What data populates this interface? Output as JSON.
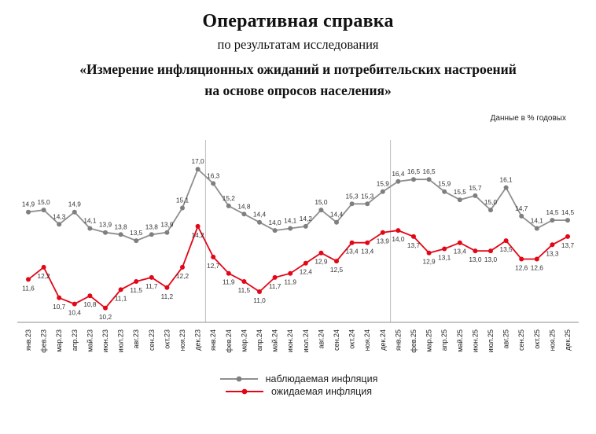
{
  "header": {
    "title": "Оперативная справка",
    "subtitle": "по результатам исследования",
    "study_line1": "«Измерение инфляционных ожиданий и потребительских настроений",
    "study_line2": "на основе опросов населения»",
    "units_note": "Данные в % годовых"
  },
  "chart_data": {
    "type": "line",
    "categories": [
      "янв.23",
      "фев.23",
      "мар.23",
      "апр.23",
      "май.23",
      "июн.23",
      "июл.23",
      "авг.23",
      "сен.23",
      "окт.23",
      "ноя.23",
      "дек.23",
      "янв.24",
      "фев.24",
      "мар.24",
      "апр.24",
      "май.24",
      "июн.24",
      "июл.24",
      "авг.24",
      "сен.24",
      "окт.24",
      "ноя.24",
      "дек.24",
      "янв.25",
      "фев.25",
      "мар.25",
      "апр.25",
      "май.25",
      "июн.25",
      "июл.25",
      "авг.25",
      "сен.25",
      "окт.25",
      "ноя.25",
      "дек.25"
    ],
    "series": [
      {
        "name": "наблюдаемая инфляция",
        "color": "#8f8f8f",
        "marker_color": "#7f7f7f",
        "values": [
          14.9,
          15.0,
          14.3,
          14.9,
          14.1,
          13.9,
          13.8,
          13.5,
          13.8,
          13.9,
          15.1,
          17.0,
          16.3,
          15.2,
          14.8,
          14.4,
          14.0,
          14.1,
          14.2,
          15.0,
          14.4,
          15.3,
          15.3,
          15.9,
          16.4,
          16.5,
          16.5,
          15.9,
          15.5,
          15.7,
          15.0,
          16.1,
          14.7,
          14.1,
          14.5,
          14.5
        ]
      },
      {
        "name": "ожидаемая инфляция",
        "color": "#e30616",
        "marker_color": "#e30616",
        "values": [
          11.6,
          12.2,
          10.7,
          10.4,
          10.8,
          10.2,
          11.1,
          11.5,
          11.7,
          11.2,
          12.2,
          14.2,
          12.7,
          11.9,
          11.5,
          11.0,
          11.7,
          11.9,
          12.4,
          12.9,
          12.5,
          13.4,
          13.4,
          13.9,
          14.0,
          13.7,
          12.9,
          13.1,
          13.4,
          13.0,
          13.0,
          13.5,
          12.6,
          12.6,
          13.3,
          13.7
        ]
      }
    ],
    "year_separators_after": [
      "дек.23",
      "дек.24"
    ],
    "ylim": [
      9.5,
      18.2
    ],
    "grid": false,
    "value_labels": true,
    "legend_position": "bottom",
    "decimal_separator": ","
  }
}
